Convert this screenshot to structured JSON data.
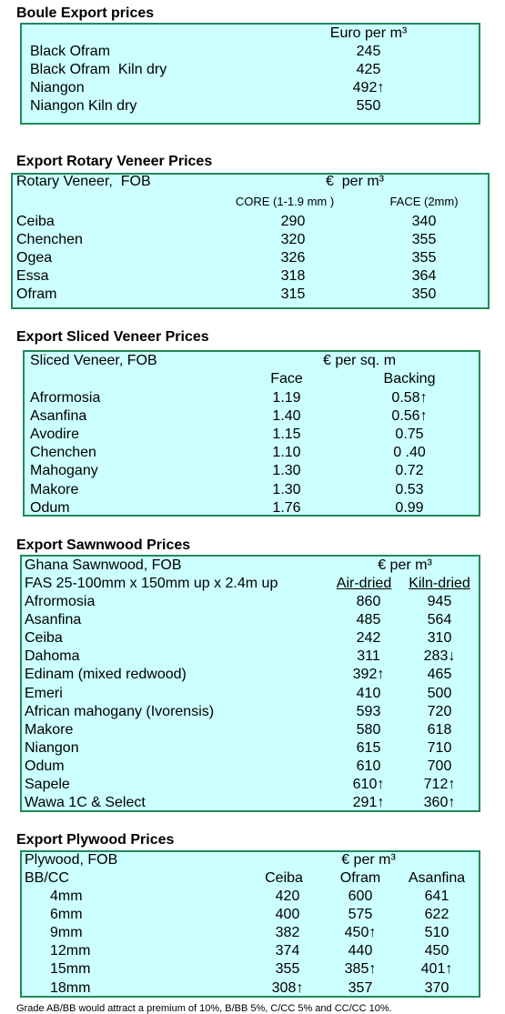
{
  "sections": [
    {
      "title": "Boule Export prices",
      "header": [
        "Euro per m³"
      ],
      "rows": [
        [
          "Black Ofram",
          "245"
        ],
        [
          "Black Ofram  Kiln dry",
          "425"
        ],
        [
          "Niangon",
          "492↑"
        ],
        [
          "Niangon Kiln dry",
          "550"
        ]
      ]
    },
    {
      "title": "Export Rotary Veneer Prices",
      "header": [
        "Rotary Veneer,  FOB",
        "€  per m³"
      ],
      "subheader": [
        "CORE (1-1.9 mm )",
        "FACE (2mm)"
      ],
      "rows": [
        [
          "Ceiba",
          "290",
          "340"
        ],
        [
          "Chenchen",
          "320",
          "355"
        ],
        [
          "Ogea",
          "326",
          "355"
        ],
        [
          "Essa",
          "318",
          "364"
        ],
        [
          "Ofram",
          "315",
          "350"
        ]
      ]
    },
    {
      "title": "Export Sliced Veneer Prices",
      "header": [
        "Sliced Veneer, FOB",
        "€ per sq. m"
      ],
      "subheader": [
        "Face",
        "Backing"
      ],
      "rows": [
        [
          "Afrormosia",
          "1.19",
          "0.58↑"
        ],
        [
          "Asanfina",
          "1.40",
          "0.56↑"
        ],
        [
          "Avodire",
          "1.15",
          "0.75"
        ],
        [
          "Chenchen",
          "1.10",
          "0 .40"
        ],
        [
          "Mahogany",
          "1.30",
          "0.72"
        ],
        [
          "Makore",
          "1.30",
          "0.53"
        ],
        [
          "Odum",
          "1.76",
          "0.99"
        ]
      ]
    },
    {
      "title": "Export Sawnwood Prices",
      "header": [
        "Ghana Sawnwood, FOB",
        "€ per m³"
      ],
      "subheader": [
        "FAS 25-100mm x 150mm up x 2.4m up",
        "Air-dried",
        "Kiln-dried"
      ],
      "rows": [
        [
          "Afrormosia",
          "860",
          "945"
        ],
        [
          "Asanfina",
          "485",
          "564"
        ],
        [
          "Ceiba",
          "242",
          "310"
        ],
        [
          "Dahoma",
          "311",
          "283↓"
        ],
        [
          "Edinam (mixed redwood)",
          "392↑",
          "465"
        ],
        [
          "Emeri",
          "410",
          "500"
        ],
        [
          "African mahogany (Ivorensis)",
          "593",
          "720"
        ],
        [
          "Makore",
          "580",
          "618"
        ],
        [
          "Niangon",
          "615",
          "710"
        ],
        [
          "Odum",
          "610",
          "700"
        ],
        [
          "Sapele",
          "610↑",
          "712↑"
        ],
        [
          "Wawa 1C & Select",
          "291↑",
          "360↑"
        ]
      ]
    },
    {
      "title": "Export Plywood Prices",
      "header": [
        "Plywood, FOB",
        "€ per m³"
      ],
      "subheader": [
        "BB/CC",
        "Ceiba",
        "Ofram",
        "Asanfina"
      ],
      "rows": [
        [
          "4mm",
          "420",
          "600",
          "641"
        ],
        [
          "6mm",
          "400",
          "575",
          "622"
        ],
        [
          "9mm",
          "382",
          "450↑",
          "510"
        ],
        [
          "12mm",
          "374",
          "440",
          "450"
        ],
        [
          "15mm",
          "355",
          "385↑",
          "401↑"
        ],
        [
          "18mm",
          "308↑",
          "357",
          "370"
        ]
      ]
    }
  ],
  "footnote": "Grade AB/BB would attract a premium of 10%, B/BB 5%, C/CC 5% and CC/CC 10%."
}
